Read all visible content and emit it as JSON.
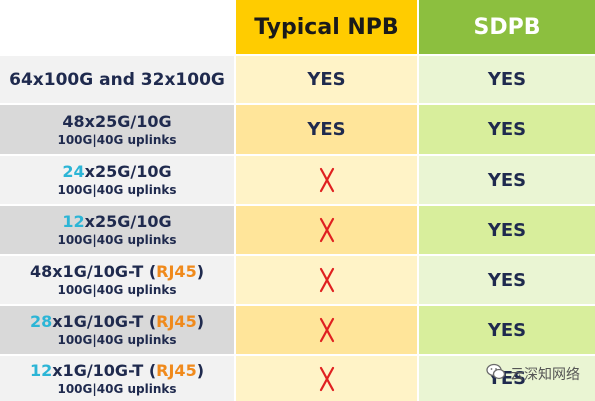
{
  "header": {
    "col1": "",
    "col2": "Typical NPB",
    "col3": "SDPB"
  },
  "rows": [
    {
      "main_num": "",
      "main_text": "64x100G and 32x100G",
      "main_paren_open": "",
      "main_paren_text": "",
      "main_paren_close": "",
      "sub": "",
      "npb": "YES",
      "sdpb": "YES"
    },
    {
      "main_num": "",
      "main_text": "48x25G/10G",
      "main_paren_open": "",
      "main_paren_text": "",
      "main_paren_close": "",
      "sub": "100G|40G uplinks",
      "npb": "YES",
      "sdpb": "YES"
    },
    {
      "main_num": "24",
      "main_text": "x25G/10G",
      "main_paren_open": "",
      "main_paren_text": "",
      "main_paren_close": "",
      "sub": "100G|40G uplinks",
      "npb": "x",
      "sdpb": "YES"
    },
    {
      "main_num": "12",
      "main_text": "x25G/10G",
      "main_paren_open": "",
      "main_paren_text": "",
      "main_paren_close": "",
      "sub": "100G|40G uplinks",
      "npb": "x",
      "sdpb": "YES"
    },
    {
      "main_num": "",
      "main_text": "48x1G/10G-T ",
      "main_paren_open": "(",
      "main_paren_text": "RJ45",
      "main_paren_close": ")",
      "sub": "100G|40G uplinks",
      "npb": "x",
      "sdpb": "YES"
    },
    {
      "main_num": "28",
      "main_text": "x1G/10G-T ",
      "main_paren_open": "(",
      "main_paren_text": "RJ45",
      "main_paren_close": ")",
      "sub": "100G|40G uplinks",
      "npb": "x",
      "sdpb": "YES"
    },
    {
      "main_num": "12",
      "main_text": "x1G/10G-T ",
      "main_paren_open": "(",
      "main_paren_text": "RJ45",
      "main_paren_close": ")",
      "sub": "100G|40G uplinks",
      "npb": "x",
      "sdpb": "YES"
    }
  ],
  "watermark": {
    "text": "云深知网络",
    "icon": "wechat-icon"
  },
  "colors": {
    "npb_header": "#ffcc00",
    "sdpb_header": "#8cbf3f",
    "highlight_number": "#2cb5d6",
    "highlight_rj45": "#f08a1c",
    "cross": "#e02020",
    "text": "#1f2a4e"
  }
}
